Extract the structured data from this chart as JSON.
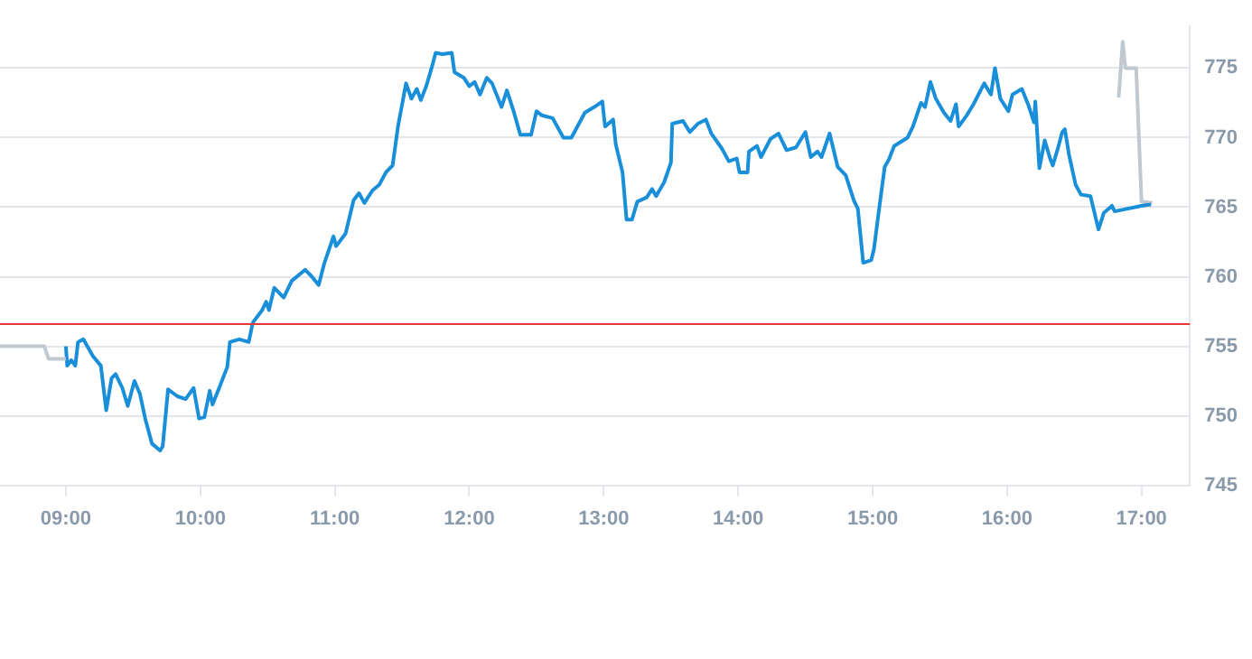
{
  "chart_data": {
    "type": "line",
    "xlim": [
      8.51,
      17.36
    ],
    "ylim": [
      745,
      778
    ],
    "xticks": [
      {
        "value": 9,
        "label": "09:00"
      },
      {
        "value": 10,
        "label": "10:00"
      },
      {
        "value": 11,
        "label": "11:00"
      },
      {
        "value": 12,
        "label": "12:00"
      },
      {
        "value": 13,
        "label": "13:00"
      },
      {
        "value": 14,
        "label": "14:00"
      },
      {
        "value": 15,
        "label": "15:00"
      },
      {
        "value": 16,
        "label": "16:00"
      },
      {
        "value": 17,
        "label": "17:00"
      }
    ],
    "yticks": [
      745,
      750,
      755,
      760,
      765,
      770,
      775
    ],
    "grid": "y",
    "legend": false,
    "marker": "none",
    "line_style": "solid",
    "ref_lines": [
      {
        "axis": "y",
        "value": 756.6,
        "color": "#e53935"
      }
    ],
    "series": [
      {
        "color": "#c0c8d0",
        "x": [
          8.51,
          8.84,
          8.87,
          9.0
        ],
        "values": [
          755,
          755,
          754.1,
          754.1
        ]
      },
      {
        "color": "#1a8fd9",
        "x": [
          9.0,
          9.01,
          9.04,
          9.07,
          9.09,
          9.13,
          9.2,
          9.26,
          9.3,
          9.34,
          9.37,
          9.42,
          9.46,
          9.51,
          9.55,
          9.59,
          9.64,
          9.7,
          9.72,
          9.76,
          9.83,
          9.89,
          9.95,
          9.99,
          10.03,
          10.07,
          10.09,
          10.14,
          10.2,
          10.22,
          10.29,
          10.36,
          10.39,
          10.46,
          10.49,
          10.51,
          10.55,
          10.62,
          10.68,
          10.78,
          10.83,
          10.88,
          10.92,
          10.99,
          11.01,
          11.08,
          11.14,
          11.18,
          11.22,
          11.28,
          11.33,
          11.38,
          11.43,
          11.47,
          11.53,
          11.57,
          11.61,
          11.64,
          11.68,
          11.72,
          11.75,
          11.8,
          11.87,
          11.89,
          11.96,
          12.0,
          12.04,
          12.08,
          12.13,
          12.17,
          12.24,
          12.28,
          12.33,
          12.38,
          12.46,
          12.5,
          12.54,
          12.62,
          12.7,
          12.76,
          12.86,
          12.93,
          12.99,
          13.01,
          13.07,
          13.09,
          13.14,
          13.17,
          13.21,
          13.25,
          13.32,
          13.36,
          13.39,
          13.45,
          13.5,
          13.51,
          13.59,
          13.64,
          13.7,
          13.76,
          13.8,
          13.88,
          13.93,
          13.99,
          14.01,
          14.07,
          14.08,
          14.14,
          14.17,
          14.24,
          14.3,
          14.36,
          14.43,
          14.5,
          14.54,
          14.59,
          14.62,
          14.68,
          14.74,
          14.8,
          14.86,
          14.89,
          14.93,
          14.99,
          15.01,
          15.05,
          15.09,
          15.12,
          15.16,
          15.26,
          15.3,
          15.36,
          15.39,
          15.43,
          15.47,
          15.53,
          15.58,
          15.62,
          15.64,
          15.7,
          15.75,
          15.83,
          15.88,
          15.91,
          15.95,
          16.01,
          16.04,
          16.11,
          16.16,
          16.2,
          16.21,
          16.24,
          16.28,
          16.32,
          16.34,
          16.38,
          16.41,
          16.43,
          16.46,
          16.51,
          16.55,
          16.62,
          16.68,
          16.72,
          16.78,
          16.8,
          17.0,
          17.07
        ],
        "values": [
          755,
          753.6,
          754,
          753.6,
          755.3,
          755.5,
          754.3,
          753.6,
          750.4,
          752.7,
          753,
          752,
          750.7,
          752.5,
          751.6,
          749.8,
          748,
          747.5,
          747.8,
          751.9,
          751.4,
          751.2,
          752,
          749.8,
          749.9,
          751.8,
          750.8,
          752,
          753.5,
          755.3,
          755.5,
          755.3,
          756.7,
          757.6,
          758.2,
          757.6,
          759.2,
          758.5,
          759.7,
          760.5,
          760,
          759.4,
          760.9,
          762.9,
          762.2,
          763.1,
          765.5,
          766,
          765.3,
          766.2,
          766.6,
          767.5,
          768,
          770.8,
          773.9,
          772.8,
          773.5,
          772.7,
          773.7,
          775,
          776.1,
          776,
          776.1,
          774.7,
          774.3,
          773.7,
          774,
          773.1,
          774.3,
          773.9,
          772.2,
          773.4,
          771.9,
          770.2,
          770.2,
          771.9,
          771.6,
          771.4,
          770,
          770,
          771.8,
          772.2,
          772.6,
          770.8,
          771.3,
          769.5,
          767.5,
          764.1,
          764.1,
          765.4,
          765.7,
          766.3,
          765.8,
          766.8,
          768.2,
          771,
          771.2,
          770.4,
          771,
          771.3,
          770.3,
          769.2,
          768.3,
          768.5,
          767.5,
          767.5,
          769,
          769.4,
          768.6,
          769.9,
          770.3,
          769.1,
          769.3,
          770.4,
          768.6,
          769,
          768.6,
          770.3,
          767.9,
          767.3,
          765.5,
          764.9,
          761,
          761.2,
          762,
          765,
          767.9,
          768.4,
          769.4,
          770,
          770.8,
          772.5,
          772.2,
          774,
          772.8,
          771.8,
          771.2,
          772.4,
          770.8,
          771.6,
          772.4,
          773.9,
          773.1,
          775,
          772.8,
          771.9,
          773.1,
          773.5,
          772.3,
          771.1,
          772.6,
          767.8,
          769.8,
          768.5,
          768,
          769.3,
          770.4,
          770.6,
          768.8,
          766.6,
          765.9,
          765.8,
          763.4,
          764.6,
          765.1,
          764.7,
          765.1,
          765.2
        ]
      },
      {
        "color": "#c0c8d0",
        "x": [
          16.83,
          16.86,
          16.88,
          16.96,
          17.0,
          17.08
        ],
        "values": [
          772.9,
          776.9,
          775,
          775,
          765.4,
          765.3
        ]
      }
    ]
  }
}
